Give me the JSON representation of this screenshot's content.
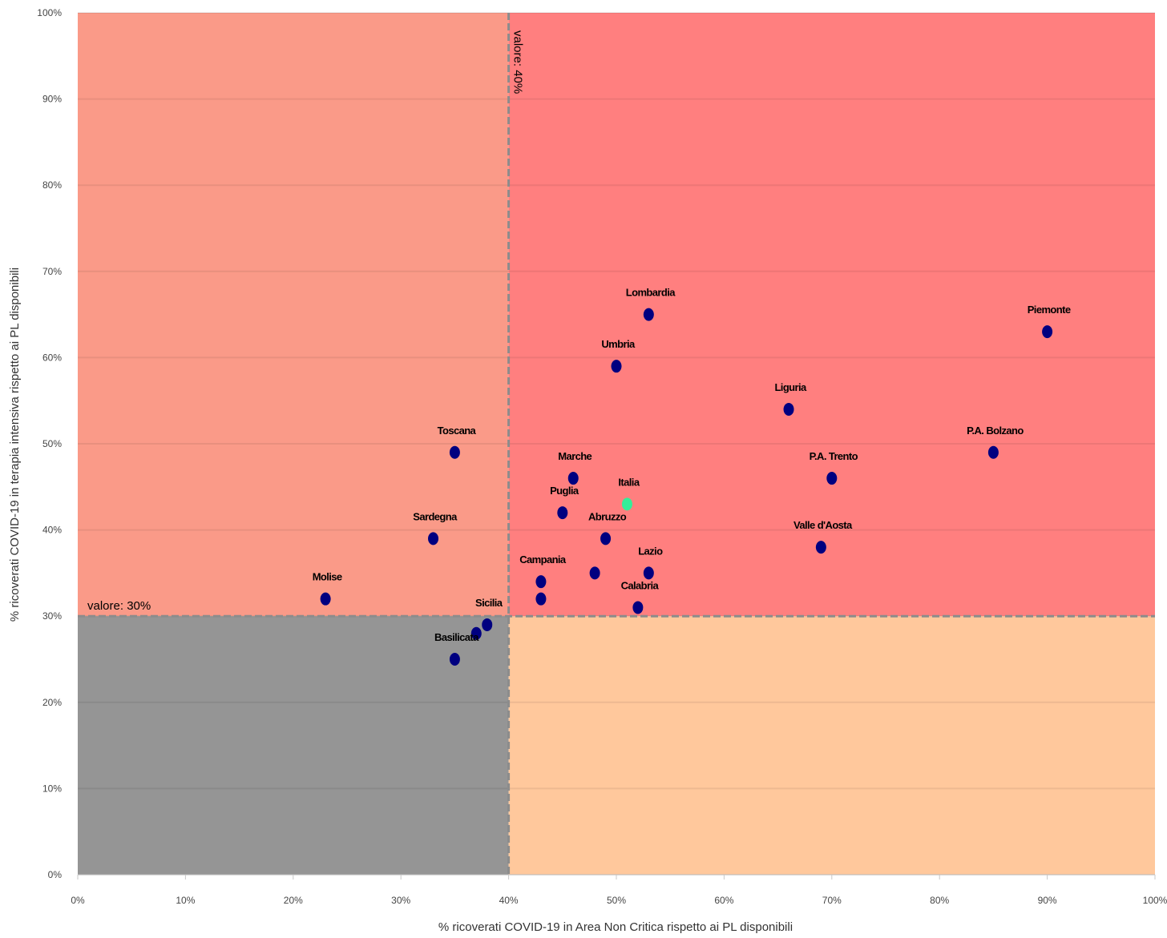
{
  "chart_data": {
    "type": "scatter",
    "xlabel": "% ricoverati COVID-19 in Area Non Critica rispetto ai PL disponibili",
    "ylabel": "% ricoverati COVID-19 in terapia intensiva rispetto ai PL disponibili",
    "xlim": [
      0,
      100
    ],
    "ylim": [
      0,
      100
    ],
    "x_ticks": [
      "0%",
      "10%",
      "20%",
      "30%",
      "40%",
      "50%",
      "60%",
      "70%",
      "80%",
      "90%",
      "100%"
    ],
    "y_ticks": [
      "0%",
      "10%",
      "20%",
      "30%",
      "40%",
      "50%",
      "60%",
      "70%",
      "80%",
      "90%",
      "100%"
    ],
    "grid": "horizontal",
    "thresholds": {
      "x": {
        "value": 40,
        "label": "valore: 40%"
      },
      "y": {
        "value": 30,
        "label": "valore: 30%"
      }
    },
    "quadrant_colors": {
      "top_left": "#FA9A88",
      "top_right": "#FF7F7F",
      "bottom_left": "#959595",
      "bottom_right": "#FFC89C"
    },
    "point_colors": {
      "region": "#000080",
      "national": "#33EE99"
    },
    "points": [
      {
        "name": "Piemonte",
        "x": 90,
        "y": 63
      },
      {
        "name": "Lombardia",
        "x": 53,
        "y": 65
      },
      {
        "name": "Umbria",
        "x": 50,
        "y": 59
      },
      {
        "name": "Liguria",
        "x": 66,
        "y": 54
      },
      {
        "name": "P.A. Bolzano",
        "x": 85,
        "y": 49
      },
      {
        "name": "Toscana",
        "x": 35,
        "y": 49
      },
      {
        "name": "P.A. Trento",
        "x": 70,
        "y": 46
      },
      {
        "name": "Marche",
        "x": 46,
        "y": 46
      },
      {
        "name": "Italia",
        "x": 51,
        "y": 43,
        "national": true
      },
      {
        "name": "Puglia",
        "x": 45,
        "y": 42
      },
      {
        "name": "Sardegna",
        "x": 33,
        "y": 39
      },
      {
        "name": "Abruzzo",
        "x": 49,
        "y": 39
      },
      {
        "name": "Valle d'Aosta",
        "x": 69,
        "y": 38
      },
      {
        "name": "Lazio",
        "x": 53,
        "y": 35
      },
      {
        "name": "",
        "x": 48,
        "y": 35
      },
      {
        "name": "Campania",
        "x": 43,
        "y": 34
      },
      {
        "name": "",
        "x": 43,
        "y": 32
      },
      {
        "name": "Molise",
        "x": 23,
        "y": 32
      },
      {
        "name": "Calabria",
        "x": 52,
        "y": 31
      },
      {
        "name": "Sicilia",
        "x": 38,
        "y": 29
      },
      {
        "name": "",
        "x": 37,
        "y": 28
      },
      {
        "name": "Basilicata",
        "x": 35,
        "y": 25
      }
    ]
  }
}
